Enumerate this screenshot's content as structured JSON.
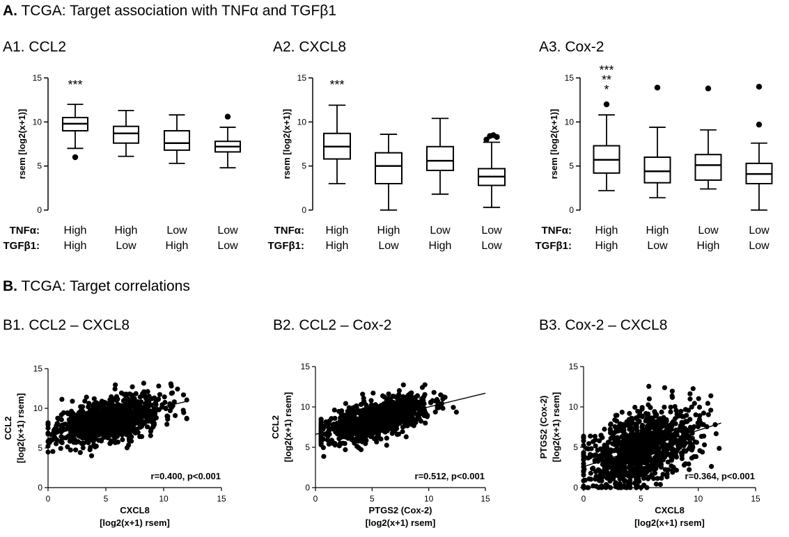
{
  "sections": {
    "a": {
      "letter": "A.",
      "text": "TCGA: Target association with TNFα and TGFβ1"
    },
    "b": {
      "letter": "B.",
      "text": "TCGA: Target correlations"
    }
  },
  "row_labels": {
    "tnf": "TNFα:",
    "tgf": "TGFβ1:"
  },
  "chart_data": [
    {
      "id": "A1",
      "type": "box",
      "title": "A1. CCL2",
      "ylabel": "rsem [log2(x+1)]",
      "ylim": [
        0,
        15
      ],
      "yticks": [
        0,
        5,
        10,
        15
      ],
      "groups": [
        {
          "tnf": "High",
          "tgf": "High",
          "whisker_low": 7.0,
          "q1": 9.0,
          "median": 9.8,
          "q3": 10.5,
          "whisker_high": 12.0,
          "outliers": [
            6.0
          ]
        },
        {
          "tnf": "High",
          "tgf": "Low",
          "whisker_low": 6.1,
          "q1": 7.6,
          "median": 8.7,
          "q3": 9.5,
          "whisker_high": 11.3,
          "outliers": []
        },
        {
          "tnf": "Low",
          "tgf": "High",
          "whisker_low": 5.3,
          "q1": 6.8,
          "median": 7.6,
          "q3": 9.0,
          "whisker_high": 10.8,
          "outliers": []
        },
        {
          "tnf": "Low",
          "tgf": "Low",
          "whisker_low": 4.8,
          "q1": 6.6,
          "median": 7.2,
          "q3": 7.8,
          "whisker_high": 9.4,
          "outliers": [
            10.6
          ]
        }
      ],
      "significance": [
        {
          "group": 0,
          "lines": [
            "***"
          ]
        }
      ]
    },
    {
      "id": "A2",
      "type": "box",
      "title": "A2. CXCL8",
      "ylabel": "rsem [log2(x+1)]",
      "ylim": [
        0,
        15
      ],
      "yticks": [
        0,
        5,
        10,
        15
      ],
      "groups": [
        {
          "tnf": "High",
          "tgf": "High",
          "whisker_low": 3.0,
          "q1": 5.8,
          "median": 7.2,
          "q3": 8.7,
          "whisker_high": 11.9,
          "outliers": []
        },
        {
          "tnf": "High",
          "tgf": "Low",
          "whisker_low": 0.0,
          "q1": 3.0,
          "median": 5.0,
          "q3": 6.5,
          "whisker_high": 8.6,
          "outliers": []
        },
        {
          "tnf": "Low",
          "tgf": "High",
          "whisker_low": 1.8,
          "q1": 4.5,
          "median": 5.6,
          "q3": 7.2,
          "whisker_high": 10.4,
          "outliers": []
        },
        {
          "tnf": "Low",
          "tgf": "Low",
          "whisker_low": 0.3,
          "q1": 2.8,
          "median": 3.8,
          "q3": 4.7,
          "whisker_high": 7.7,
          "outliers": [
            8.0,
            8.4,
            8.5,
            8.3
          ]
        }
      ],
      "significance": [
        {
          "group": 0,
          "lines": [
            "***"
          ]
        }
      ]
    },
    {
      "id": "A3",
      "type": "box",
      "title": "A3. Cox-2",
      "ylabel": "rsem [log2(x+1)]",
      "ylim": [
        0,
        15
      ],
      "yticks": [
        0,
        5,
        10,
        15
      ],
      "groups": [
        {
          "tnf": "High",
          "tgf": "High",
          "whisker_low": 2.2,
          "q1": 4.2,
          "median": 5.7,
          "q3": 7.3,
          "whisker_high": 10.8,
          "outliers": [
            12.0
          ]
        },
        {
          "tnf": "High",
          "tgf": "Low",
          "whisker_low": 1.4,
          "q1": 3.1,
          "median": 4.4,
          "q3": 6.0,
          "whisker_high": 9.4,
          "outliers": [
            13.9
          ]
        },
        {
          "tnf": "Low",
          "tgf": "High",
          "whisker_low": 2.4,
          "q1": 3.4,
          "median": 5.1,
          "q3": 6.3,
          "whisker_high": 9.1,
          "outliers": [
            13.8
          ]
        },
        {
          "tnf": "Low",
          "tgf": "Low",
          "whisker_low": 0.0,
          "q1": 3.0,
          "median": 4.1,
          "q3": 5.3,
          "whisker_high": 7.6,
          "outliers": [
            9.7,
            14.0
          ]
        }
      ],
      "significance": [
        {
          "group": 0,
          "lines": [
            "***",
            "**",
            "*"
          ]
        }
      ]
    },
    {
      "id": "B1",
      "type": "scatter",
      "title": "B1. CCL2 – CXCL8",
      "xlabel": [
        "CXCL8",
        "[log2(x+1) rsem]"
      ],
      "ylabel": [
        "CCL2",
        "[log2(x+1) rsem]"
      ],
      "xlim": [
        0,
        15
      ],
      "ylim": [
        0,
        15
      ],
      "xticks": [
        0,
        5,
        10,
        15
      ],
      "yticks": [
        0,
        5,
        10,
        15
      ],
      "annotation": "r=0.400, p<0.001",
      "fit": {
        "intercept": 6.8,
        "slope": 0.34
      },
      "cloud": {
        "x_mean": 5.3,
        "x_sd": 2.3,
        "x_min": 0,
        "x_max": 12,
        "y_sd": 1.35,
        "y_min": 3.2,
        "y_max": 13.3,
        "n": 950,
        "seed": 11
      }
    },
    {
      "id": "B2",
      "type": "scatter",
      "title": "B2. CCL2 – Cox-2",
      "xlabel": [
        "PTGS2 (Cox-2)",
        "[log2(x+1) rsem]"
      ],
      "ylabel": [
        "CCL2",
        "[log2(x+1) rsem]"
      ],
      "xlim": [
        0,
        15
      ],
      "ylim": [
        0,
        15
      ],
      "xticks": [
        0,
        5,
        10,
        15
      ],
      "yticks": [
        0,
        5,
        10,
        15
      ],
      "annotation": "r=0.512, p<0.001",
      "fit": {
        "intercept": 6.6,
        "slope": 0.34
      },
      "cloud": {
        "x_mean": 5.2,
        "x_sd": 2.4,
        "x_min": 0.5,
        "x_max": 14,
        "y_sd": 1.1,
        "y_min": 3.2,
        "y_max": 13.3,
        "n": 950,
        "seed": 23
      }
    },
    {
      "id": "B3",
      "type": "scatter",
      "title": "B3. Cox-2 – CXCL8",
      "xlabel": [
        "CXCL8",
        "[log2(x+1) rsem]"
      ],
      "ylabel": [
        "PTGS2 (Cox-2)",
        "[log2(x+1) rsem]"
      ],
      "xlim": [
        0,
        15
      ],
      "ylim": [
        0,
        15
      ],
      "xticks": [
        0,
        5,
        10,
        15
      ],
      "yticks": [
        0,
        5,
        10,
        15
      ],
      "annotation": "r=0.364, p<0.001",
      "fit": {
        "intercept": 2.6,
        "slope": 0.45
      },
      "cloud": {
        "x_mean": 5.0,
        "x_sd": 2.4,
        "x_min": 0,
        "x_max": 12,
        "y_sd": 2.2,
        "y_min": 0,
        "y_max": 14,
        "n": 1000,
        "seed": 37
      }
    }
  ]
}
